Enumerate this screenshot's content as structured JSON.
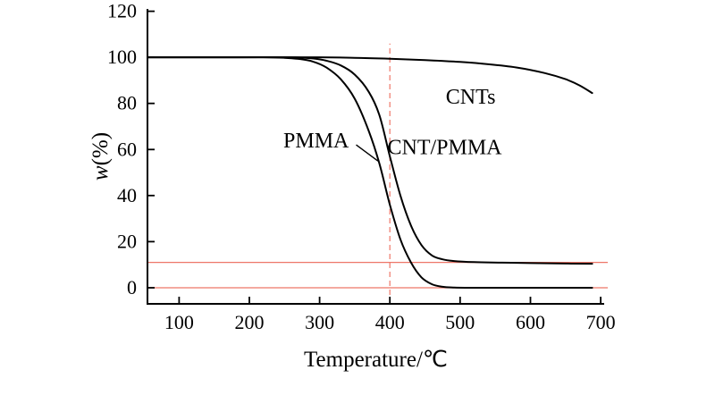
{
  "figure": {
    "background": "#ffffff"
  },
  "chart_data": {
    "type": "line",
    "title": "",
    "xlabel": "Temperature/℃",
    "ylabel_italic": "w",
    "ylabel_rest": "(%)",
    "xlim": [
      55,
      705
    ],
    "ylim": [
      -7,
      121
    ],
    "xticks": [
      100,
      200,
      300,
      400,
      500,
      600,
      700
    ],
    "yticks": [
      0,
      20,
      40,
      60,
      80,
      100,
      120
    ],
    "grid": false,
    "legend": "none (inline annotations)",
    "axis_color": "#000000",
    "curve_color": "#000000",
    "ref_color": "#ee7668",
    "series": [
      {
        "name": "PMMA",
        "points": [
          [
            55,
            100
          ],
          [
            150,
            100
          ],
          [
            220,
            100
          ],
          [
            250,
            99.8
          ],
          [
            270,
            99.3
          ],
          [
            290,
            98.2
          ],
          [
            310,
            95.5
          ],
          [
            330,
            90.5
          ],
          [
            350,
            82
          ],
          [
            370,
            68
          ],
          [
            385,
            54
          ],
          [
            400,
            36
          ],
          [
            415,
            21
          ],
          [
            430,
            11
          ],
          [
            445,
            4.5
          ],
          [
            460,
            1.5
          ],
          [
            475,
            0.4
          ],
          [
            490,
            0.1
          ],
          [
            520,
            0
          ],
          [
            600,
            0
          ],
          [
            688,
            0
          ]
        ]
      },
      {
        "name": "CNT/PMMA",
        "points": [
          [
            55,
            100
          ],
          [
            180,
            100
          ],
          [
            260,
            100
          ],
          [
            290,
            99.5
          ],
          [
            310,
            98.5
          ],
          [
            330,
            96.5
          ],
          [
            350,
            92.5
          ],
          [
            370,
            85
          ],
          [
            385,
            75
          ],
          [
            400,
            57
          ],
          [
            415,
            40
          ],
          [
            430,
            27
          ],
          [
            445,
            18.5
          ],
          [
            460,
            14
          ],
          [
            475,
            12.3
          ],
          [
            490,
            11.6
          ],
          [
            520,
            11.1
          ],
          [
            560,
            10.9
          ],
          [
            600,
            10.7
          ],
          [
            650,
            10.5
          ],
          [
            688,
            10.4
          ]
        ]
      },
      {
        "name": "CNTs",
        "points": [
          [
            55,
            100
          ],
          [
            200,
            100
          ],
          [
            300,
            100
          ],
          [
            350,
            99.8
          ],
          [
            400,
            99.4
          ],
          [
            450,
            98.8
          ],
          [
            500,
            98
          ],
          [
            540,
            97
          ],
          [
            580,
            95.6
          ],
          [
            620,
            93.2
          ],
          [
            650,
            90.5
          ],
          [
            670,
            87.8
          ],
          [
            688,
            84.5
          ]
        ]
      }
    ],
    "ref_lines_h": [
      {
        "y": 0
      },
      {
        "y": 11
      }
    ],
    "ref_line_v": {
      "x": 400,
      "y0": -7,
      "y1": 106,
      "dash": true
    },
    "annotations": [
      {
        "text": "PMMA",
        "x": 295,
        "y": 64,
        "leader": {
          "x1": 352,
          "y1": 62,
          "x2": 383,
          "y2": 55
        }
      },
      {
        "text": "CNT/PMMA",
        "x": 478,
        "y": 61
      },
      {
        "text": "CNTs",
        "x": 515,
        "y": 83
      }
    ]
  }
}
